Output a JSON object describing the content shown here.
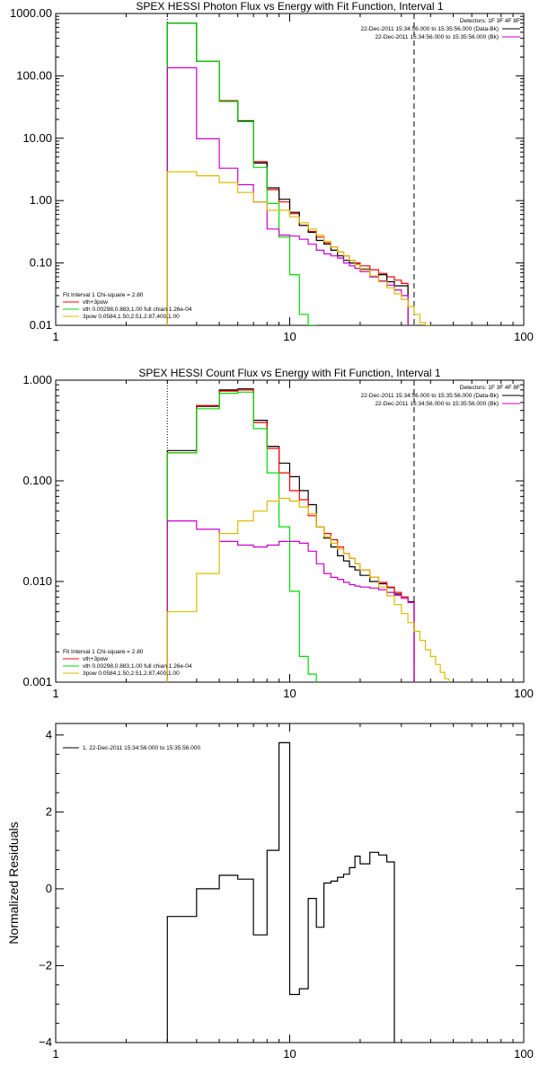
{
  "chart_data": [
    {
      "type": "line",
      "title": "SPEX HESSI Photon Flux vs Energy with Fit Function, Interval 1",
      "xlabel": "",
      "ylabel": "",
      "xscale": "log",
      "yscale": "log",
      "xlim": [
        1,
        100
      ],
      "ylim": [
        0.01,
        1000
      ],
      "x_ticks": [
        {
          "v": 1,
          "label": "1"
        },
        {
          "v": 10,
          "label": "10"
        },
        {
          "v": 100,
          "label": "100"
        }
      ],
      "y_ticks": [
        {
          "v": 1000,
          "label": "1000.00"
        },
        {
          "v": 100,
          "label": "100.00"
        },
        {
          "v": 10,
          "label": "10.00"
        },
        {
          "v": 1,
          "label": "1.00"
        },
        {
          "v": 0.1,
          "label": "0.10"
        },
        {
          "v": 0.01,
          "label": "0.01"
        }
      ],
      "vlines": [
        {
          "x": 3,
          "style": "dotted",
          "color": "#000000"
        },
        {
          "x": 34,
          "style": "dashed",
          "color": "#000000"
        }
      ],
      "header": {
        "detectors": "Detectors: 1F 3F 4F 8F",
        "lines": [
          {
            "text": "22-Dec-2011 15:34:56.000 to 15:35:56.000 (Data-Bk)",
            "color": "#000000"
          },
          {
            "text": "22-Dec-2011 15:34:56.000 to 15:35:56.000 (Bk)",
            "color": "#cc00cc"
          }
        ]
      },
      "fit_legend": {
        "heading": "Fit Interval 1    Chi-square = 2.80",
        "items": [
          {
            "text": "vth+3pow",
            "color": "#ff0000"
          },
          {
            "text": "vth 0.00298,0.883,1.00  full chian 1.26e-04",
            "color": "#00dd00"
          },
          {
            "text": "3pow 0.0584,1.50,2.51,2.87,400,1.00",
            "color": "#ddbb00"
          }
        ]
      },
      "bin_edges": [
        3,
        4,
        5,
        6,
        7,
        8,
        9,
        10,
        11,
        12,
        13,
        14,
        15,
        16,
        17,
        18,
        19,
        20,
        22,
        24,
        26,
        28,
        30,
        32,
        34,
        36,
        38,
        40,
        42,
        44
      ],
      "series": [
        {
          "name": "vth+3pow",
          "color": "#ff0000",
          "edge_start": 0,
          "values": [
            700,
            170,
            40,
            19,
            4.2,
            1.5,
            0.95,
            0.62,
            0.4,
            0.32,
            0.26,
            0.21,
            0.18,
            0.15,
            0.13,
            0.11,
            0.1,
            0.09,
            0.078,
            0.068,
            0.06,
            0.053,
            0.047
          ]
        },
        {
          "name": "",
          "color": "#000000",
          "edge_start": 0,
          "values": [
            700,
            170,
            39,
            19,
            4.0,
            1.6,
            1.05,
            0.65,
            0.4,
            0.31,
            0.23,
            0.2,
            0.16,
            0.13,
            0.11,
            0.1,
            0.095,
            0.08,
            0.06,
            0.065,
            0.05,
            0.043,
            0.043
          ]
        },
        {
          "name": "vth",
          "color": "#00dd00",
          "edge_start": 0,
          "values": [
            700,
            170,
            39,
            18.5,
            3.4,
            0.9,
            0.26,
            0.065,
            0.015,
            0.0095
          ]
        },
        {
          "name": "",
          "color": "#cc00cc",
          "edge_start": 0,
          "values": [
            135,
            9.8,
            3.3,
            1.8,
            0.95,
            0.35,
            0.28,
            0.27,
            0.24,
            0.2,
            0.16,
            0.14,
            0.13,
            0.12,
            0.1,
            0.09,
            0.082,
            0.073,
            0.06,
            0.052,
            0.044,
            0.037,
            0.03
          ]
        },
        {
          "name": "3pow",
          "color": "#ddbb00",
          "edge_start": 0,
          "values": [
            2.9,
            2.5,
            1.95,
            1.35,
            0.95,
            0.7,
            0.7,
            0.55,
            0.44,
            0.35,
            0.28,
            0.22,
            0.18,
            0.15,
            0.13,
            0.11,
            0.094,
            0.078,
            0.062,
            0.05,
            0.04,
            0.032,
            0.026,
            0.02,
            0.015,
            0.011,
            0.009
          ]
        }
      ]
    },
    {
      "type": "line",
      "title": "SPEX HESSI Count Flux vs Energy with Fit Function, Interval 1",
      "xlabel": "",
      "ylabel": "",
      "xscale": "log",
      "yscale": "log",
      "xlim": [
        1,
        100
      ],
      "ylim": [
        0.001,
        1
      ],
      "x_ticks": [
        {
          "v": 1,
          "label": "1"
        },
        {
          "v": 10,
          "label": "10"
        },
        {
          "v": 100,
          "label": "100"
        }
      ],
      "y_ticks": [
        {
          "v": 1,
          "label": "1.000"
        },
        {
          "v": 0.1,
          "label": "0.100"
        },
        {
          "v": 0.01,
          "label": "0.010"
        },
        {
          "v": 0.001,
          "label": "0.001"
        }
      ],
      "vlines": [
        {
          "x": 3,
          "style": "dotted",
          "color": "#000000"
        },
        {
          "x": 34,
          "style": "dashed",
          "color": "#000000"
        }
      ],
      "header": {
        "detectors": "Detectors: 1F 3F 4F 8F",
        "lines": [
          {
            "text": "22-Dec-2011 15:34:56.000 to 15:35:56.000 (Data-Bk)",
            "color": "#000000"
          },
          {
            "text": "22-Dec-2011 15:34:56.000 to 15:35:56.000 (Bk)",
            "color": "#cc00cc"
          }
        ]
      },
      "fit_legend": {
        "heading": "Fit Interval 1    Chi-square = 2.80",
        "items": [
          {
            "text": "vth+3pow",
            "color": "#ff0000"
          },
          {
            "text": "vth 0.00298,0.883,1.00  full chian 1.26e-04",
            "color": "#00dd00"
          },
          {
            "text": "3pow 0.0584,1.50,2.51,2.87,400,1.00",
            "color": "#ddbb00"
          }
        ]
      },
      "bin_edges": [
        3,
        4,
        5,
        6,
        7,
        8,
        9,
        10,
        11,
        12,
        13,
        14,
        15,
        16,
        17,
        18,
        19,
        20,
        22,
        24,
        26,
        28,
        30,
        32,
        34,
        36,
        38,
        40,
        42,
        44,
        46,
        48,
        50,
        52,
        54,
        56,
        58,
        60
      ],
      "series": [
        {
          "name": "",
          "color": "#000000",
          "edge_start": 0,
          "values": [
            0.2,
            0.55,
            0.8,
            0.82,
            0.4,
            0.22,
            0.15,
            0.11,
            0.08,
            0.058,
            0.035,
            0.027,
            0.022,
            0.018,
            0.016,
            0.014,
            0.013,
            0.0115,
            0.01,
            0.0095,
            0.0087,
            0.0075,
            0.007,
            0.0063
          ]
        },
        {
          "name": "vth+3pow",
          "color": "#ff0000",
          "edge_start": 0,
          "values": [
            0.19,
            0.56,
            0.78,
            0.8,
            0.38,
            0.21,
            0.12,
            0.08,
            0.065,
            0.045,
            0.035,
            0.03,
            0.026,
            0.022,
            0.019,
            0.017,
            0.015,
            0.013,
            0.011,
            0.0098,
            0.0088,
            0.0078,
            0.007,
            0.0062
          ]
        },
        {
          "name": "vth",
          "color": "#00dd00",
          "edge_start": 0,
          "values": [
            0.19,
            0.52,
            0.74,
            0.76,
            0.33,
            0.12,
            0.035,
            0.008,
            0.0018,
            0.0012
          ]
        },
        {
          "name": "",
          "color": "#cc00cc",
          "edge_start": 0,
          "values": [
            0.04,
            0.033,
            0.025,
            0.023,
            0.022,
            0.023,
            0.025,
            0.025,
            0.024,
            0.02,
            0.015,
            0.012,
            0.011,
            0.0105,
            0.0098,
            0.0093,
            0.009,
            0.0088,
            0.0086,
            0.0083,
            0.0078,
            0.0073,
            0.0068,
            0.0062
          ]
        },
        {
          "name": "3pow",
          "color": "#ddbb00",
          "edge_start": 0,
          "values": [
            0.005,
            0.012,
            0.03,
            0.04,
            0.05,
            0.063,
            0.067,
            0.063,
            0.055,
            0.047,
            0.035,
            0.028,
            0.024,
            0.021,
            0.019,
            0.017,
            0.015,
            0.013,
            0.011,
            0.0088,
            0.0072,
            0.0059,
            0.0048,
            0.0039,
            0.0032,
            0.0026,
            0.0021,
            0.0018,
            0.0015,
            0.00125,
            0.00108
          ]
        }
      ]
    },
    {
      "type": "line",
      "title": "",
      "xlabel": "",
      "ylabel": "Normalized Residuals",
      "xscale": "log",
      "yscale": "linear",
      "xlim": [
        1,
        100
      ],
      "ylim": [
        -4,
        4.3
      ],
      "x_ticks": [
        {
          "v": 1,
          "label": "1"
        },
        {
          "v": 10,
          "label": "10"
        },
        {
          "v": 100,
          "label": "100"
        }
      ],
      "y_ticks": [
        {
          "v": 4,
          "label": "4"
        },
        {
          "v": 2,
          "label": "2"
        },
        {
          "v": 0,
          "label": "0"
        },
        {
          "v": -2,
          "label": "−2"
        },
        {
          "v": -4,
          "label": "−4"
        }
      ],
      "y_minor_step": 0.5,
      "legend_item": {
        "text": "1. 22-Dec-2011 15:34:56.000 to 15:35:56.000",
        "color": "#000000"
      },
      "bin_edges": [
        3,
        4,
        5,
        6,
        7,
        8,
        9,
        10,
        11,
        12,
        13,
        14,
        15,
        16,
        17,
        18,
        19,
        20,
        22,
        24,
        26,
        28,
        30,
        32,
        34
      ],
      "series": [
        {
          "name": "1. 22-Dec-2011 15:34:56.000 to 15:35:56.000",
          "color": "#000000",
          "edge_start": 0,
          "values": [
            -0.72,
            0.0,
            0.35,
            0.25,
            -1.2,
            1.0,
            3.8,
            -2.75,
            -2.6,
            -0.25,
            -1.0,
            0.15,
            0.2,
            0.3,
            0.38,
            0.55,
            0.85,
            0.65,
            0.95,
            0.88,
            0.7
          ]
        }
      ]
    }
  ]
}
